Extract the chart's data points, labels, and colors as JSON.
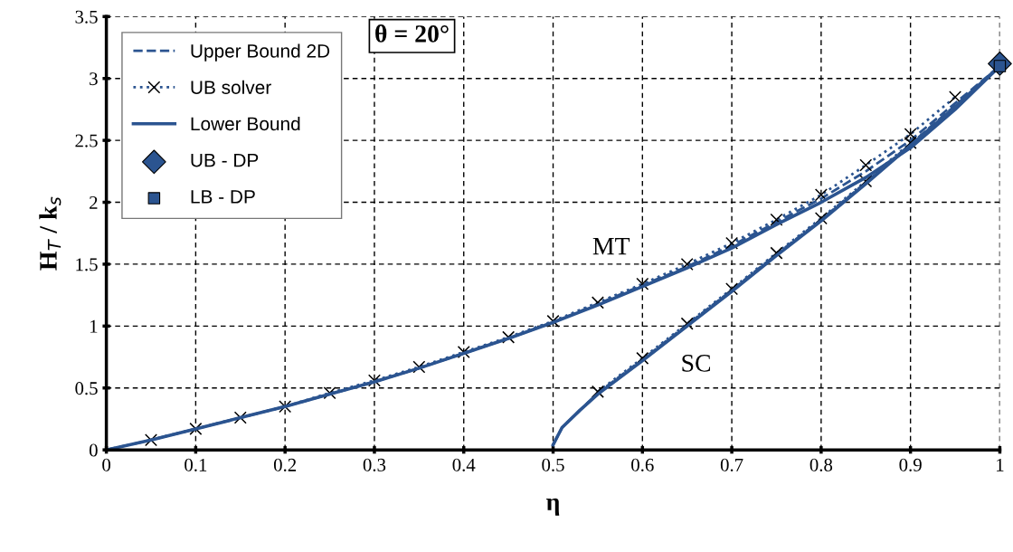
{
  "chart_data": {
    "type": "line",
    "xlabel": "η",
    "ylabel": "H$_{T}$ / k$_{s}$",
    "xlim": [
      0,
      1
    ],
    "ylim": [
      0,
      3.5
    ],
    "xticks": [
      0,
      0.1,
      0.2,
      0.3,
      0.4,
      0.5,
      0.6,
      0.7,
      0.8,
      0.9,
      1
    ],
    "yticks": [
      0,
      0.5,
      1,
      1.5,
      2,
      2.5,
      3,
      3.5
    ],
    "grid": true,
    "legend": "top left",
    "series": [
      {
        "name": "Upper Bound 2D",
        "color": "#2b5490",
        "line_style": "dashed",
        "marker": "none",
        "x": [
          0,
          0.05,
          0.1,
          0.15,
          0.2,
          0.25,
          0.3,
          0.35,
          0.4,
          0.45,
          0.5,
          0.55,
          0.6,
          0.65,
          0.7,
          0.75,
          0.8,
          0.85,
          0.9,
          0.95,
          1
        ],
        "values": [
          0,
          0.08,
          0.17,
          0.26,
          0.35,
          0.45,
          0.55,
          0.66,
          0.78,
          0.9,
          1.03,
          1.18,
          1.33,
          1.48,
          1.65,
          1.84,
          2.03,
          2.25,
          2.5,
          2.8,
          3.1
        ]
      },
      {
        "color": "#2b5490",
        "line_style": "dashed",
        "marker": "none",
        "x": [
          0.5,
          0.51,
          0.53,
          0.55,
          0.6,
          0.65,
          0.7,
          0.75,
          0.8,
          0.85,
          0.9,
          0.95,
          1
        ],
        "values": [
          0.04,
          0.18,
          0.32,
          0.46,
          0.73,
          1.01,
          1.29,
          1.58,
          1.86,
          2.16,
          2.47,
          2.78,
          3.1
        ]
      },
      {
        "name": "UB solver",
        "color": "#2b5490",
        "line_style": "dotted",
        "marker": "cross",
        "x": [
          0.05,
          0.1,
          0.15,
          0.2,
          0.25,
          0.3,
          0.35,
          0.4,
          0.45,
          0.5,
          0.55,
          0.6,
          0.65,
          0.7,
          0.75,
          0.8,
          0.85,
          0.9,
          0.95
        ],
        "values": [
          0.08,
          0.17,
          0.26,
          0.35,
          0.46,
          0.56,
          0.67,
          0.79,
          0.91,
          1.04,
          1.19,
          1.34,
          1.5,
          1.67,
          1.86,
          2.06,
          2.3,
          2.55,
          2.85
        ]
      },
      {
        "color": "#2b5490",
        "line_style": "dotted",
        "marker": "cross",
        "x": [
          0.55,
          0.6,
          0.65,
          0.7,
          0.75,
          0.8,
          0.85,
          0.9
        ],
        "values": [
          0.47,
          0.74,
          1.02,
          1.3,
          1.59,
          1.87,
          2.17,
          2.48
        ]
      },
      {
        "name": "Lower Bound",
        "color": "#2b5490",
        "line_style": "solid",
        "marker": "none",
        "x": [
          0,
          0.05,
          0.1,
          0.15,
          0.2,
          0.25,
          0.3,
          0.35,
          0.4,
          0.45,
          0.5,
          0.55,
          0.6,
          0.65,
          0.7,
          0.75,
          0.8,
          0.85,
          0.9,
          0.95,
          1
        ],
        "values": [
          0,
          0.08,
          0.17,
          0.26,
          0.35,
          0.45,
          0.55,
          0.66,
          0.78,
          0.9,
          1.03,
          1.17,
          1.32,
          1.47,
          1.63,
          1.82,
          2.0,
          2.2,
          2.44,
          2.75,
          3.1
        ]
      },
      {
        "color": "#2b5490",
        "line_style": "solid",
        "marker": "none",
        "x": [
          0.5,
          0.51,
          0.53,
          0.55,
          0.6,
          0.65,
          0.7,
          0.75,
          0.8,
          0.85,
          0.9,
          0.95,
          1
        ],
        "values": [
          0.04,
          0.18,
          0.32,
          0.45,
          0.72,
          1.0,
          1.28,
          1.57,
          1.85,
          2.15,
          2.46,
          2.77,
          3.1
        ]
      },
      {
        "name": "UB - DP",
        "type": "scatter",
        "color": "#2b5490",
        "marker": "diamond",
        "x": [
          1
        ],
        "values": [
          3.12
        ]
      },
      {
        "name": "LB - DP",
        "type": "scatter",
        "color": "#2b5490",
        "marker": "square",
        "x": [
          1
        ],
        "values": [
          3.1
        ]
      }
    ],
    "annotations": [
      "θ = 20°",
      "MT",
      "SC"
    ]
  }
}
